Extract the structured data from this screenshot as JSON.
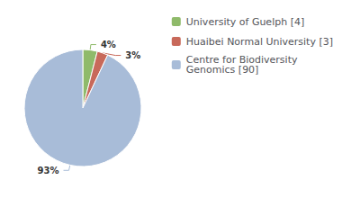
{
  "chart_data": {
    "type": "pie",
    "categories": [
      "University of Guelph [4]",
      "Huaibei Normal University [3]",
      "Centre for Biodiversity\nGenomics [90]"
    ],
    "values": [
      4,
      3,
      93
    ],
    "value_labels": [
      "4%",
      "3%",
      "93%"
    ],
    "colors": [
      "#8fba6a",
      "#c8695a",
      "#a8bcd8"
    ],
    "data_labels": true,
    "legend": "upper right"
  }
}
